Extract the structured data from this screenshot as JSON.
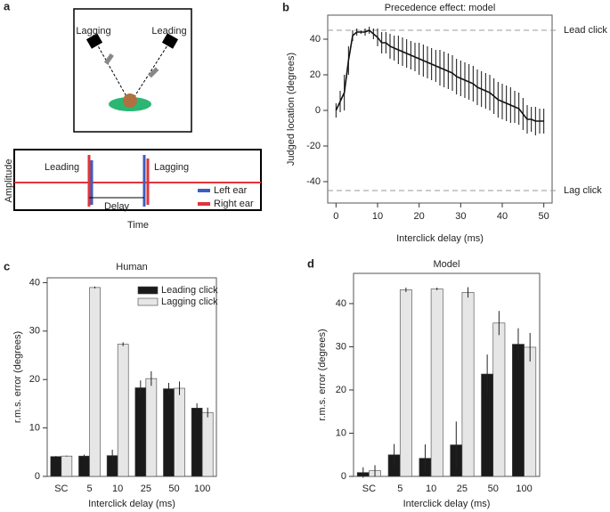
{
  "diagram_a": {
    "panel": "a",
    "speaker_left": "Lagging",
    "speaker_right": "Leading",
    "y_label": "Amplitude",
    "x_label": "Time",
    "leading": "Leading",
    "lagging": "Lagging",
    "delay": "Delay",
    "legend": [
      {
        "name": "Left ear",
        "color": "#3a5fbf"
      },
      {
        "name": "Right ear",
        "color": "#e0343a"
      }
    ]
  },
  "chart_data": [
    {
      "type": "line",
      "panel": "b",
      "title": "Precedence effect: model",
      "x_label": "Interclick delay (ms)",
      "y_label": "Judged location (degrees)",
      "x": [
        0,
        1,
        2,
        3,
        4,
        5,
        6,
        7,
        8,
        9,
        10,
        11,
        12,
        13,
        14,
        15,
        16,
        17,
        18,
        19,
        20,
        21,
        22,
        23,
        24,
        25,
        26,
        27,
        28,
        29,
        30,
        31,
        32,
        33,
        34,
        35,
        36,
        37,
        38,
        39,
        40,
        41,
        42,
        43,
        44,
        45,
        46,
        47,
        48,
        49,
        50
      ],
      "series": [
        {
          "color": "#111111",
          "values": [
            0,
            5,
            10,
            28,
            42,
            44,
            44,
            44,
            45,
            43,
            41,
            38,
            38,
            36,
            35,
            34,
            33,
            32,
            31,
            30,
            29,
            28,
            27,
            26,
            25,
            24,
            23,
            22,
            21,
            19,
            18,
            17,
            16,
            15,
            13,
            12,
            11,
            10,
            8,
            6,
            5,
            4,
            3,
            2,
            1,
            -2,
            -5,
            -5,
            -6,
            -6,
            -6
          ],
          "errors": [
            4,
            6,
            10,
            8,
            3,
            2,
            1,
            2,
            2,
            3,
            5,
            6,
            6,
            7,
            7,
            8,
            8,
            8,
            8,
            8,
            9,
            9,
            9,
            9,
            9,
            10,
            10,
            10,
            10,
            10,
            10,
            10,
            10,
            10,
            10,
            10,
            10,
            10,
            10,
            10,
            10,
            10,
            10,
            9,
            9,
            9,
            8,
            7,
            8,
            7,
            7
          ]
        }
      ],
      "reference_lines": [
        {
          "value": 45,
          "label": "Lead click"
        },
        {
          "value": -45,
          "label": "Lag click"
        }
      ],
      "xlim": [
        -2,
        52
      ],
      "xticks": [
        0,
        10,
        20,
        30,
        40,
        50
      ],
      "ylim": [
        -52,
        53.5
      ],
      "yticks": [
        -40,
        -20,
        0,
        20,
        40
      ]
    },
    {
      "type": "bar",
      "panel": "c",
      "title": "Human",
      "x_label": "Interclick delay (ms)",
      "y_label": "r.m.s. error (degrees)",
      "categories": [
        "SC",
        "5",
        "10",
        "25",
        "50",
        "100"
      ],
      "series": [
        {
          "name": "Leading click",
          "color": "#1a1a1a",
          "values": [
            4.1,
            4.2,
            4.3,
            18.3,
            18.1,
            14.1
          ],
          "errors": [
            0.1,
            0.3,
            1.2,
            1.5,
            1.2,
            1.0
          ]
        },
        {
          "name": "Lagging click",
          "color": "#e6e6e6",
          "values": [
            4.2,
            39.0,
            27.3,
            20.2,
            18.2,
            13.2
          ],
          "errors": [
            0.1,
            0.2,
            0.4,
            1.5,
            1.4,
            1.0
          ]
        }
      ],
      "ylim": [
        0,
        41
      ],
      "yticks": [
        0,
        10,
        20,
        30,
        40
      ],
      "legend": "top-right"
    },
    {
      "type": "bar",
      "panel": "d",
      "title": "Model",
      "x_label": "Interclick delay (ms)",
      "y_label": "r.m.s. error (degrees)",
      "categories": [
        "SC",
        "5",
        "10",
        "25",
        "50",
        "100"
      ],
      "series": [
        {
          "color": "#1a1a1a",
          "values": [
            0.9,
            5.0,
            4.2,
            7.3,
            23.7,
            30.6
          ],
          "errors": [
            1.2,
            2.5,
            3.2,
            5.4,
            4.5,
            3.7
          ]
        },
        {
          "color": "#e6e6e6",
          "values": [
            1.3,
            43.2,
            43.4,
            42.6,
            35.5,
            29.9
          ],
          "errors": [
            1.3,
            0.5,
            0.3,
            1.2,
            2.8,
            3.3
          ]
        }
      ],
      "ylim": [
        0,
        47
      ],
      "yticks": [
        0,
        10,
        20,
        30,
        40
      ]
    }
  ]
}
